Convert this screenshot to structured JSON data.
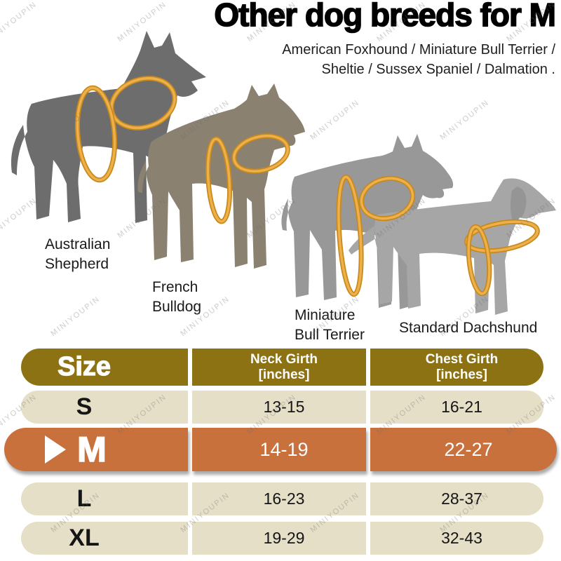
{
  "header": {
    "title": "Other dog breeds for M",
    "subtitle": "American Foxhound / Miniature Bull Terrier /\nSheltie / Sussex Spaniel / Dalmation ."
  },
  "watermark": {
    "text": "MINIYOUPIN"
  },
  "breeds": [
    {
      "name": "Australian Shepherd",
      "label": "Australian\nShepherd"
    },
    {
      "name": "French Bulldog",
      "label": "French\nBulldog"
    },
    {
      "name": "Miniature Bull Terrier",
      "label": "Miniature\nBull Terrier"
    },
    {
      "name": "Standard Dachshund",
      "label": "Standard Dachshund"
    }
  ],
  "size_chart": {
    "columns": [
      "Size",
      "Neck Girth\n[inches]",
      "Chest Girth\n[inches]"
    ],
    "rows": [
      {
        "size": "S",
        "neck_girth_inches": "13-15",
        "chest_girth_inches": "16-21",
        "highlighted": false
      },
      {
        "size": "M",
        "neck_girth_inches": "14-19",
        "chest_girth_inches": "22-27",
        "highlighted": true
      },
      {
        "size": "L",
        "neck_girth_inches": "16-23",
        "chest_girth_inches": "28-37",
        "highlighted": false
      },
      {
        "size": "XL",
        "neck_girth_inches": "19-29",
        "chest_girth_inches": "32-43",
        "highlighted": false
      }
    ],
    "highlighted_size": "M"
  },
  "colors": {
    "table_header_bg": "#8d7214",
    "table_row_bg": "#e6dfc8",
    "highlight_row_bg": "#c9713c",
    "girth_ring": "#eeb04a",
    "girth_ring_dark": "#c8891c",
    "dog_fills": [
      "#6d6d6d",
      "#8b8171",
      "#989898",
      "#a6a6a6"
    ]
  }
}
